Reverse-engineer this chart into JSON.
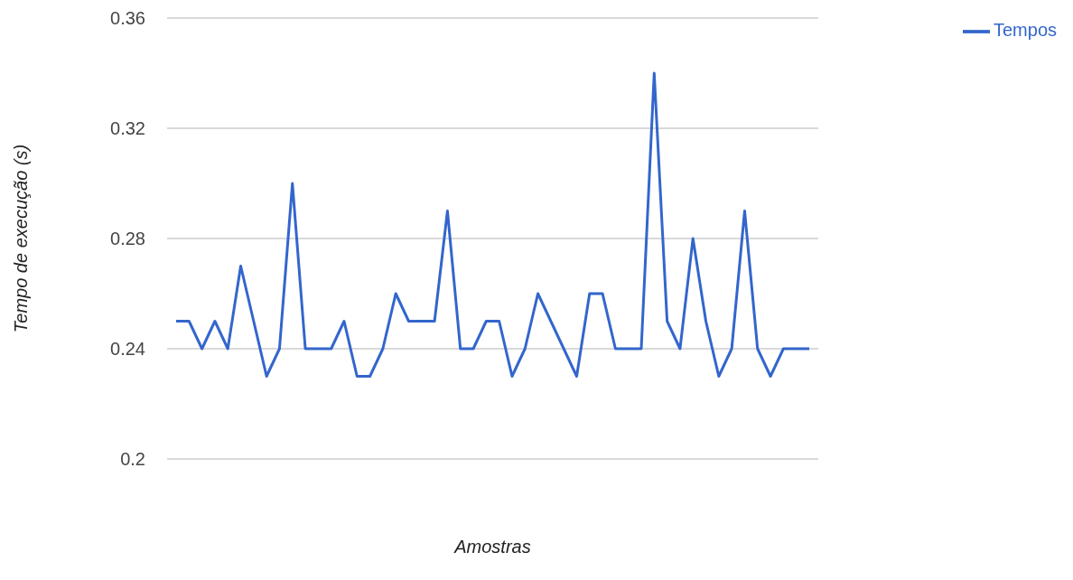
{
  "chart_data": {
    "type": "line",
    "xlabel": "Amostras",
    "ylabel": "Tempo de execução (s)",
    "categories": [
      null,
      null,
      null,
      null,
      null,
      null,
      null,
      null,
      null,
      null,
      null,
      null,
      null,
      null,
      null,
      null,
      null,
      null,
      null,
      null,
      null,
      null,
      null,
      null,
      null,
      null,
      null,
      null,
      null,
      null,
      null,
      null,
      null,
      null,
      null,
      null,
      null,
      null,
      null,
      null,
      null,
      null,
      null,
      null,
      null,
      null,
      null,
      null,
      null,
      null
    ],
    "series": [
      {
        "name": "Tempos",
        "color": "#3366cc",
        "values": [
          0.25,
          0.25,
          0.24,
          0.25,
          0.24,
          0.27,
          0.25,
          0.23,
          0.24,
          0.3,
          0.24,
          0.24,
          0.24,
          0.25,
          0.23,
          0.23,
          0.24,
          0.26,
          0.25,
          0.25,
          0.25,
          0.29,
          0.24,
          0.24,
          0.25,
          0.25,
          0.23,
          0.24,
          0.26,
          0.25,
          0.24,
          0.23,
          0.26,
          0.26,
          0.24,
          0.24,
          0.24,
          0.34,
          0.25,
          0.24,
          0.28,
          0.25,
          0.23,
          0.24,
          0.29,
          0.24,
          0.23,
          0.24,
          0.24,
          0.24
        ]
      }
    ],
    "ylim": [
      0.2,
      0.36
    ],
    "yticks": [
      0.2,
      0.24,
      0.28,
      0.32,
      0.36
    ],
    "grid": "y",
    "legend": "top right",
    "marker": "none",
    "line_style": "solid"
  }
}
